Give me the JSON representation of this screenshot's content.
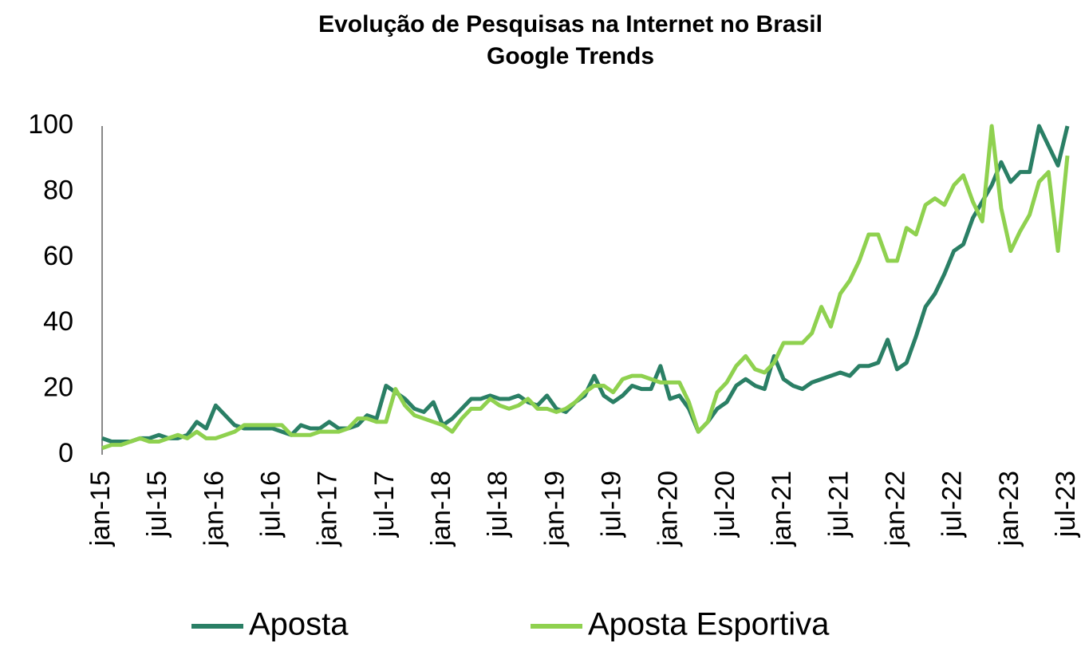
{
  "chart_data": {
    "type": "line",
    "title": "Evolução de Pesquisas na Internet no Brasil",
    "subtitle": "Google Trends",
    "categories": [
      "jan-15",
      null,
      null,
      null,
      null,
      null,
      "jul-15",
      null,
      null,
      null,
      null,
      null,
      "jan-16",
      null,
      null,
      null,
      null,
      null,
      "jul-16",
      null,
      null,
      null,
      null,
      null,
      "jan-17",
      null,
      null,
      null,
      null,
      null,
      "jul-17",
      null,
      null,
      null,
      null,
      null,
      "jan-18",
      null,
      null,
      null,
      null,
      null,
      "jul-18",
      null,
      null,
      null,
      null,
      null,
      "jan-19",
      null,
      null,
      null,
      null,
      null,
      "jul-19",
      null,
      null,
      null,
      null,
      null,
      "jan-20",
      null,
      null,
      null,
      null,
      null,
      "jul-20",
      null,
      null,
      null,
      null,
      null,
      "jan-21",
      null,
      null,
      null,
      null,
      null,
      "jul-21",
      null,
      null,
      null,
      null,
      null,
      "jan-22",
      null,
      null,
      null,
      null,
      null,
      "jul-22",
      null,
      null,
      null,
      null,
      null,
      "jan-23",
      null,
      null,
      null,
      null,
      null,
      "jul-23"
    ],
    "series": [
      {
        "name": "Aposta",
        "color": "#2a7f65",
        "values": [
          5,
          4,
          4,
          4,
          5,
          5,
          6,
          5,
          5,
          6,
          10,
          8,
          15,
          12,
          9,
          8,
          8,
          8,
          8,
          7,
          6,
          9,
          8,
          8,
          10,
          8,
          8,
          9,
          12,
          11,
          21,
          19,
          17,
          14,
          13,
          16,
          9,
          11,
          14,
          17,
          17,
          18,
          17,
          17,
          18,
          16,
          15,
          18,
          14,
          13,
          16,
          18,
          24,
          18,
          16,
          18,
          21,
          20,
          20,
          27,
          17,
          18,
          14,
          7,
          10,
          14,
          16,
          21,
          23,
          21,
          20,
          30,
          23,
          21,
          20,
          22,
          23,
          24,
          25,
          24,
          27,
          27,
          28,
          35,
          26,
          28,
          36,
          45,
          49,
          55,
          62,
          64,
          72,
          77,
          82,
          89,
          83,
          86,
          86,
          100,
          94,
          88,
          100
        ]
      },
      {
        "name": "Aposta Esportiva",
        "color": "#8fd14f",
        "values": [
          2,
          3,
          3,
          4,
          5,
          4,
          4,
          5,
          6,
          5,
          7,
          5,
          5,
          6,
          7,
          9,
          9,
          9,
          9,
          9,
          6,
          6,
          6,
          7,
          7,
          7,
          8,
          11,
          11,
          10,
          10,
          20,
          15,
          12,
          11,
          10,
          9,
          7,
          11,
          14,
          14,
          17,
          15,
          14,
          15,
          17,
          14,
          14,
          13,
          14,
          16,
          19,
          21,
          21,
          19,
          23,
          24,
          24,
          23,
          22,
          22,
          22,
          16,
          7,
          10,
          19,
          22,
          27,
          30,
          26,
          25,
          28,
          34,
          34,
          34,
          37,
          45,
          39,
          49,
          53,
          59,
          67,
          67,
          59,
          59,
          69,
          67,
          76,
          78,
          76,
          82,
          85,
          77,
          71,
          100,
          75,
          62,
          68,
          73,
          83,
          86,
          62,
          91
        ]
      }
    ],
    "ylim": [
      0,
      100
    ],
    "yticks": [
      0,
      20,
      40,
      60,
      80,
      100
    ],
    "grid": false
  }
}
